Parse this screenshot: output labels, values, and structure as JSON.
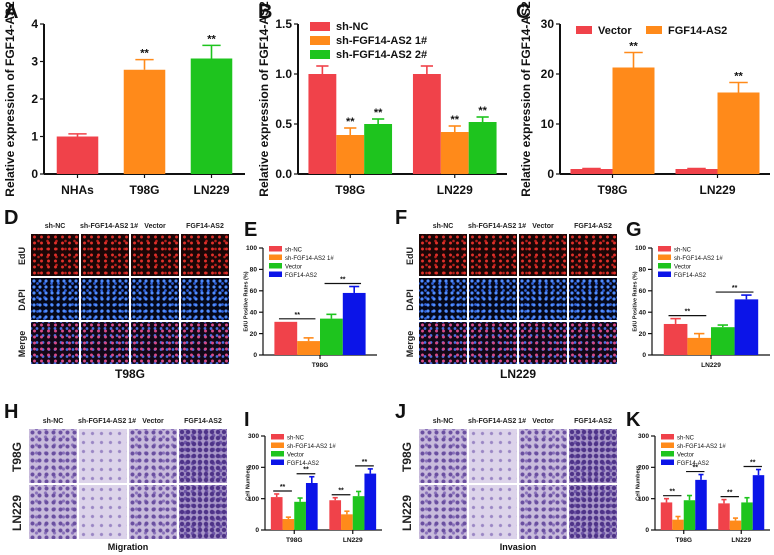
{
  "panel_labels": [
    "A",
    "B",
    "C",
    "D",
    "E",
    "F",
    "G",
    "H",
    "I",
    "J",
    "K"
  ],
  "colors": {
    "sh-NC": "#f0424a",
    "sh-FGF14-AS2 1#": "#ff8a1a",
    "sh-FGF14-AS2 2#": "#1ec41e",
    "Vector_red": "#f0424a",
    "FGF14-AS2_orange": "#ff8a1a",
    "Vector_green": "#1ec41e",
    "FGF14-AS2_blue": "#0b14e8"
  },
  "edu_panels": {
    "headers": [
      "sh-NC",
      "sh-FGF14-AS2 1#",
      "Vector",
      "FGF14-AS2"
    ],
    "rows": [
      "EdU",
      "DAPI",
      "Merge"
    ],
    "D_caption": "T98G",
    "F_caption": "LN229"
  },
  "transwell_panels": {
    "headers": [
      "sh-NC",
      "sh-FGF14-AS2 1#",
      "Vector",
      "FGF14-AS2"
    ],
    "rows": [
      "T98G",
      "LN229"
    ],
    "H_caption": "Migration",
    "J_caption": "Invasion"
  },
  "chart_data": [
    {
      "panel": "A",
      "type": "bar",
      "ylabel": "Relative expression of FGF14-AS2",
      "ylim": [
        0,
        4
      ],
      "yticks": [
        "0",
        "1",
        "2",
        "3",
        "4"
      ],
      "categories": [
        "NHAs",
        "T98G",
        "LN229"
      ],
      "per_category_colors": [
        "#f0424a",
        "#ff8a1a",
        "#1ec41e"
      ],
      "series": [
        {
          "values": [
            1.0,
            2.78,
            3.08
          ],
          "errors": [
            0.07,
            0.27,
            0.35
          ]
        }
      ],
      "significance": [
        {
          "category": 1,
          "series": 0,
          "label": "**"
        },
        {
          "category": 2,
          "series": 0,
          "label": "**"
        }
      ],
      "legend": "none"
    },
    {
      "panel": "B",
      "type": "bar",
      "ylabel": "Relative expression of FGF14-AS2",
      "ylim": [
        0,
        1.5
      ],
      "yticks": [
        "0.0",
        "0.5",
        "1.0",
        "1.5"
      ],
      "categories": [
        "T98G",
        "LN229"
      ],
      "series": [
        {
          "name": "sh-NC",
          "color": "#f0424a",
          "values": [
            1.0,
            1.0
          ],
          "errors": [
            0.08,
            0.08
          ]
        },
        {
          "name": "sh-FGF14-AS2 1#",
          "color": "#ff8a1a",
          "values": [
            0.39,
            0.42
          ],
          "errors": [
            0.07,
            0.06
          ]
        },
        {
          "name": "sh-FGF14-AS2 2#",
          "color": "#1ec41e",
          "values": [
            0.5,
            0.52
          ],
          "errors": [
            0.05,
            0.05
          ]
        }
      ],
      "significance": [
        {
          "category": 0,
          "series": 1,
          "label": "**"
        },
        {
          "category": 0,
          "series": 2,
          "label": "**"
        },
        {
          "category": 1,
          "series": 1,
          "label": "**"
        },
        {
          "category": 1,
          "series": 2,
          "label": "**"
        }
      ],
      "legend": "top-left"
    },
    {
      "panel": "C",
      "type": "bar",
      "ylabel": "Relative expression of FGF14-AS2",
      "ylim": [
        0,
        30
      ],
      "yticks": [
        "0",
        "10",
        "20",
        "30"
      ],
      "categories": [
        "T98G",
        "LN229"
      ],
      "series": [
        {
          "name": "Vector",
          "color": "#f0424a",
          "values": [
            1.0,
            1.0
          ],
          "errors": [
            0.1,
            0.1
          ]
        },
        {
          "name": "FGF14-AS2",
          "color": "#ff8a1a",
          "values": [
            21.3,
            16.3
          ],
          "errors": [
            3.0,
            2.0
          ]
        }
      ],
      "significance": [
        {
          "category": 0,
          "series": 1,
          "label": "**"
        },
        {
          "category": 1,
          "series": 1,
          "label": "**"
        }
      ],
      "legend": "top"
    },
    {
      "panel": "E",
      "type": "bar",
      "ylabel": "EdU Positive Rates (%)",
      "ylim": [
        0,
        100
      ],
      "yticks": [
        "0",
        "20",
        "40",
        "60",
        "80",
        "100"
      ],
      "categories": [
        "T98G"
      ],
      "series": [
        {
          "name": "sh-NC",
          "color": "#f0424a",
          "values": [
            31
          ]
        },
        {
          "name": "sh-FGF14-AS2 1#",
          "color": "#ff8a1a",
          "values": [
            13
          ],
          "errors": [
            3
          ]
        },
        {
          "name": "Vector",
          "color": "#1ec41e",
          "values": [
            34
          ],
          "errors": [
            4
          ]
        },
        {
          "name": "FGF14-AS2",
          "color": "#0b14e8",
          "values": [
            58
          ],
          "errors": [
            6
          ]
        }
      ],
      "brackets": [
        {
          "category": 0,
          "from": 0,
          "to": 1,
          "label": "**"
        },
        {
          "category": 0,
          "from": 2,
          "to": 3,
          "label": "**"
        }
      ],
      "legend": "top-left"
    },
    {
      "panel": "G",
      "type": "bar",
      "ylabel": "EdU Positive Rates (%)",
      "ylim": [
        0,
        100
      ],
      "yticks": [
        "0",
        "20",
        "40",
        "60",
        "80",
        "100"
      ],
      "categories": [
        "LN229"
      ],
      "series": [
        {
          "name": "sh-NC",
          "color": "#f0424a",
          "values": [
            29
          ],
          "errors": [
            5
          ]
        },
        {
          "name": "sh-FGF14-AS2 1#",
          "color": "#ff8a1a",
          "values": [
            16
          ],
          "errors": [
            4
          ]
        },
        {
          "name": "Vector",
          "color": "#1ec41e",
          "values": [
            26
          ],
          "errors": [
            2
          ]
        },
        {
          "name": "FGF14-AS2",
          "color": "#0b14e8",
          "values": [
            52
          ],
          "errors": [
            4
          ]
        }
      ],
      "brackets": [
        {
          "category": 0,
          "from": 0,
          "to": 1,
          "label": "**"
        },
        {
          "category": 0,
          "from": 2,
          "to": 3,
          "label": "**"
        }
      ],
      "legend": "top-left"
    },
    {
      "panel": "I",
      "type": "bar",
      "ylabel": "Cell Numbers",
      "ylim": [
        0,
        300
      ],
      "yticks": [
        "0",
        "100",
        "200",
        "300"
      ],
      "categories": [
        "T98G",
        "LN229"
      ],
      "series": [
        {
          "name": "sh-NC",
          "color": "#f0424a",
          "values": [
            105,
            95
          ],
          "errors": [
            10,
            8
          ]
        },
        {
          "name": "sh-FGF14-AS2 1#",
          "color": "#ff8a1a",
          "values": [
            35,
            50
          ],
          "errors": [
            6,
            10
          ]
        },
        {
          "name": "Vector",
          "color": "#1ec41e",
          "values": [
            90,
            108
          ],
          "errors": [
            12,
            15
          ]
        },
        {
          "name": "FGF14-AS2",
          "color": "#0b14e8",
          "values": [
            150,
            180
          ],
          "errors": [
            20,
            15
          ]
        }
      ],
      "brackets": [
        {
          "category": 0,
          "from": 0,
          "to": 1,
          "label": "**"
        },
        {
          "category": 0,
          "from": 2,
          "to": 3,
          "label": "**"
        },
        {
          "category": 1,
          "from": 0,
          "to": 1,
          "label": "**"
        },
        {
          "category": 1,
          "from": 2,
          "to": 3,
          "label": "**"
        }
      ],
      "legend": "top-left"
    },
    {
      "panel": "K",
      "type": "bar",
      "ylabel": "Cell Numbers",
      "ylim": [
        0,
        300
      ],
      "yticks": [
        "0",
        "100",
        "200",
        "300"
      ],
      "categories": [
        "T98G",
        "LN229"
      ],
      "series": [
        {
          "name": "sh-NC",
          "color": "#f0424a",
          "values": [
            88,
            85
          ],
          "errors": [
            12,
            12
          ]
        },
        {
          "name": "sh-FGF14-AS2 1#",
          "color": "#ff8a1a",
          "values": [
            33,
            30
          ],
          "errors": [
            10,
            8
          ]
        },
        {
          "name": "Vector",
          "color": "#1ec41e",
          "values": [
            95,
            88
          ],
          "errors": [
            15,
            15
          ]
        },
        {
          "name": "FGF14-AS2",
          "color": "#0b14e8",
          "values": [
            160,
            175
          ],
          "errors": [
            17,
            18
          ]
        }
      ],
      "brackets": [
        {
          "category": 0,
          "from": 0,
          "to": 1,
          "label": "**"
        },
        {
          "category": 0,
          "from": 2,
          "to": 3,
          "label": "**"
        },
        {
          "category": 1,
          "from": 0,
          "to": 1,
          "label": "**"
        },
        {
          "category": 1,
          "from": 2,
          "to": 3,
          "label": "**"
        }
      ],
      "legend": "top-left"
    }
  ]
}
